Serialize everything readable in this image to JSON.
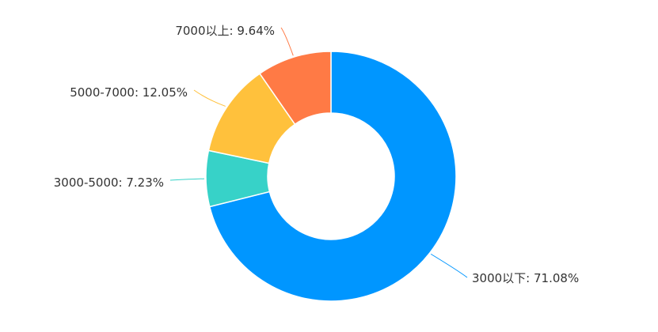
{
  "chart_data": {
    "type": "pie",
    "variant": "donut",
    "label_separator": ": ",
    "slices": [
      {
        "name": "3000以下",
        "value": 71.08,
        "label": "71.08%",
        "color": "#0096ff"
      },
      {
        "name": "3000-5000",
        "value": 7.23,
        "label": "7.23%",
        "color": "#37d2c8"
      },
      {
        "name": "5000-7000",
        "value": 12.05,
        "label": "12.05%",
        "color": "#ffc13c"
      },
      {
        "name": "7000以上",
        "value": 9.64,
        "label": "9.64%",
        "color": "#ff7a45"
      }
    ]
  }
}
